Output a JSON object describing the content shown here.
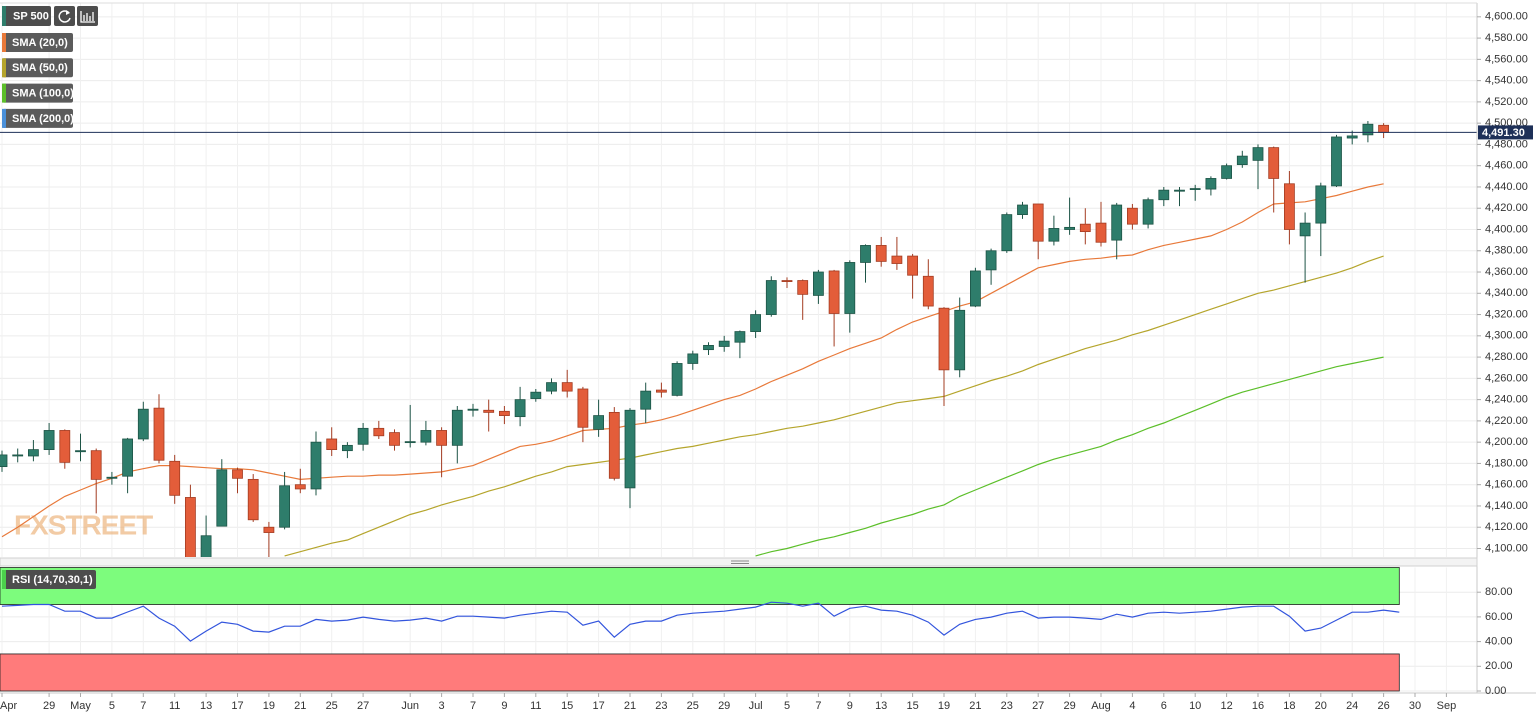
{
  "chart_data": {
    "type": "candlestick",
    "title": "SP 500",
    "watermark": "FXSTREET",
    "categories": [
      "Apr",
      null,
      null,
      "29",
      null,
      "May",
      null,
      "5",
      null,
      "7",
      null,
      "11",
      null,
      "13",
      null,
      "17",
      null,
      "19",
      null,
      "21",
      null,
      "25",
      null,
      "27",
      null,
      null,
      "Jun",
      null,
      "3",
      null,
      "7",
      null,
      "9",
      null,
      "11",
      null,
      "15",
      null,
      "17",
      null,
      "21",
      null,
      "23",
      null,
      "25",
      null,
      "29",
      null,
      "Jul",
      null,
      "5",
      null,
      "7",
      null,
      "9",
      null,
      "13",
      null,
      "15",
      null,
      "19",
      null,
      "21",
      null,
      "23",
      null,
      "27",
      null,
      "29",
      null,
      "Aug",
      null,
      "4",
      null,
      "6",
      null,
      "10",
      null,
      "12",
      null,
      "16",
      null,
      "18",
      null,
      "20",
      null,
      "24",
      null,
      "26",
      null,
      "30",
      null,
      "Sep",
      null
    ],
    "open": [
      4177,
      4187,
      4187,
      4193,
      4211,
      4191,
      4192,
      4166,
      4168,
      4203,
      4232,
      4182,
      4148,
      4074,
      4121,
      4174,
      4165,
      4120,
      4120,
      4160,
      4156,
      4203,
      4192,
      4198,
      4213,
      4209,
      4200,
      4200,
      4211,
      4197,
      4230,
      4230,
      4229,
      4224,
      4241,
      4248,
      4256,
      4250,
      4212,
      4228,
      4157,
      4231,
      4249,
      4244,
      4274,
      4287,
      4290,
      4294,
      4304,
      4320,
      4352,
      4352,
      4338,
      4361,
      4321,
      4369,
      4385,
      4375,
      4375,
      4356,
      4326,
      4268,
      4328,
      4362,
      4380,
      4414,
      4424,
      4389,
      4400,
      4405,
      4406,
      4390,
      4420,
      4405,
      4428,
      4436,
      4438,
      4438,
      4448,
      4461,
      4465,
      4477,
      4443,
      4394,
      4406,
      4441,
      4486,
      4489,
      4498,
      null,
      null,
      null,
      null,
      null
    ],
    "high": [
      4192,
      4194,
      4202,
      4218,
      4212,
      4208,
      4194,
      4172,
      4204,
      4238,
      4245,
      4188,
      4160,
      4131,
      4184,
      4176,
      4170,
      4125,
      4172,
      4175,
      4210,
      4214,
      4200,
      4218,
      4220,
      4212,
      4235,
      4220,
      4214,
      4234,
      4236,
      4240,
      4234,
      4252,
      4250,
      4260,
      4268,
      4252,
      4240,
      4233,
      4232,
      4256,
      4256,
      4276,
      4286,
      4294,
      4300,
      4305,
      4324,
      4356,
      4355,
      4353,
      4362,
      4362,
      4371,
      4386,
      4393,
      4393,
      4377,
      4372,
      4327,
      4336,
      4364,
      4382,
      4416,
      4426,
      4424,
      4413,
      4430,
      4420,
      4426,
      4425,
      4424,
      4430,
      4440,
      4440,
      4442,
      4450,
      4462,
      4474,
      4480,
      4478,
      4455,
      4416,
      4444,
      4489,
      4493,
      4502,
      4500,
      null,
      null,
      null,
      null,
      null
    ],
    "low": [
      4172,
      4181,
      4182,
      4188,
      4175,
      4182,
      4133,
      4160,
      4152,
      4201,
      4180,
      4142,
      4057,
      4069,
      4121,
      4152,
      4125,
      4060,
      4118,
      4152,
      4150,
      4187,
      4185,
      4192,
      4203,
      4192,
      4195,
      4197,
      4167,
      4180,
      4224,
      4210,
      4217,
      4215,
      4238,
      4245,
      4242,
      4200,
      4205,
      4164,
      4138,
      4218,
      4242,
      4243,
      4268,
      4282,
      4285,
      4279,
      4298,
      4318,
      4345,
      4315,
      4330,
      4290,
      4303,
      4350,
      4365,
      4362,
      4335,
      4325,
      4234,
      4261,
      4327,
      4348,
      4378,
      4410,
      4372,
      4385,
      4395,
      4386,
      4384,
      4372,
      4400,
      4401,
      4422,
      4422,
      4427,
      4432,
      4447,
      4458,
      4438,
      4416,
      4386,
      4350,
      4375,
      4440,
      4480,
      4482,
      4486,
      null,
      null,
      null,
      null,
      null
    ],
    "close": [
      4188,
      4188,
      4193,
      4211,
      4181,
      4192,
      4165,
      4167,
      4203,
      4231,
      4183,
      4150,
      4063,
      4112,
      4174,
      4166,
      4127,
      4115,
      4159,
      4156,
      4200,
      4193,
      4197,
      4213,
      4206,
      4197,
      4200.5,
      4211,
      4197,
      4230,
      4231,
      4228,
      4225,
      4240,
      4247,
      4256,
      4248,
      4214,
      4225,
      4166,
      4230,
      4248,
      4247,
      4274,
      4283,
      4291,
      4295,
      4304,
      4320,
      4352,
      4351,
      4339,
      4360,
      4321,
      4369,
      4385,
      4370,
      4368,
      4357,
      4328,
      4268,
      4324,
      4361,
      4380,
      4414,
      4423,
      4389,
      4401,
      4402,
      4398,
      4388,
      4423,
      4405,
      4428,
      4437,
      4437,
      4438.5,
      4448,
      4460,
      4469,
      4477,
      4448,
      4400,
      4406,
      4441,
      4487,
      4488,
      4499,
      4491.3,
      null,
      null,
      null,
      null,
      null
    ],
    "up_color": "#2e7d6b",
    "down_color": "#e35d3a",
    "overlays": [
      {
        "name": "SMA (20,0)",
        "color": "#e8793a",
        "values": [
          4111,
          4120,
          4130,
          4140,
          4149,
          4155,
          4161,
          4166,
          4172,
          4175,
          4178,
          4178,
          4177,
          4176,
          4175,
          4175,
          4174,
          4171,
          4168,
          4165,
          4166,
          4167,
          4168,
          4168,
          4169,
          4169,
          4170,
          4171,
          4172,
          4175,
          4178,
          4184,
          4190,
          4196,
          4198,
          4201,
          4206,
          4211,
          4212,
          4213,
          4216,
          4218,
          4221,
          4225,
          4230,
          4235,
          4240,
          4244,
          4250,
          4257,
          4263,
          4269,
          4276,
          4282,
          4288,
          4293,
          4298,
          4306,
          4313,
          4318,
          4323,
          4328,
          4332,
          4340,
          4348,
          4356,
          4364,
          4367,
          4370,
          4372,
          4373,
          4375,
          4376,
          4381,
          4385,
          4388,
          4391,
          4394,
          4400,
          4407,
          4416,
          4424,
          4425,
          4426,
          4429,
          4432,
          4436,
          4440,
          4443,
          null,
          null,
          null,
          null,
          null
        ]
      },
      {
        "name": "SMA (50,0)",
        "color": "#b5a52c",
        "values": [
          null,
          null,
          null,
          null,
          null,
          null,
          null,
          null,
          null,
          null,
          null,
          null,
          null,
          null,
          null,
          null,
          null,
          null,
          4093,
          4097,
          4101,
          4105,
          4108,
          4114,
          4120,
          4126,
          4132,
          4136,
          4141,
          4145,
          4149,
          4154,
          4158,
          4163,
          4168,
          4172,
          4177,
          4179,
          4181,
          4183,
          4185,
          4188,
          4191,
          4194,
          4196,
          4199,
          4202,
          4205,
          4207,
          4210,
          4213,
          4215,
          4218,
          4221,
          4225,
          4229,
          4233,
          4237,
          4239,
          4241,
          4243,
          4248,
          4253,
          4258,
          4262,
          4267,
          4273,
          4278,
          4283,
          4288,
          4292,
          4296,
          4301,
          4305,
          4310,
          4315,
          4320,
          4325,
          4330,
          4335,
          4340,
          4343,
          4347,
          4351,
          4355,
          4359,
          4364,
          4370,
          4375,
          null,
          null,
          null,
          null,
          null
        ]
      },
      {
        "name": "SMA (100,0)",
        "color": "#5cbf2a",
        "values": [
          null,
          null,
          null,
          null,
          null,
          null,
          null,
          null,
          null,
          null,
          null,
          null,
          null,
          null,
          null,
          null,
          null,
          null,
          null,
          null,
          null,
          null,
          null,
          null,
          null,
          null,
          null,
          null,
          null,
          null,
          null,
          null,
          null,
          null,
          null,
          null,
          null,
          null,
          null,
          null,
          null,
          null,
          null,
          null,
          null,
          null,
          null,
          null,
          4093,
          4097,
          4100,
          4104,
          4108,
          4111,
          4115,
          4119,
          4124,
          4128,
          4132,
          4137,
          4141,
          4149,
          4155,
          4161,
          4167,
          4173,
          4179,
          4184,
          4188,
          4192,
          4196,
          4202,
          4207,
          4213,
          4218,
          4224,
          4230,
          4236,
          4242,
          4247,
          4251,
          4255,
          4259,
          4263,
          4267,
          4271,
          4274,
          4277,
          4280,
          null,
          null,
          null,
          null,
          null
        ]
      },
      {
        "name": "SMA (200,0)",
        "color": "#4a90d9"
      }
    ],
    "ylim": [
      4092,
      4613
    ],
    "yticks": [
      {
        "value": 4100,
        "label": "4,100.00"
      },
      {
        "value": 4120,
        "label": "4,120.00"
      },
      {
        "value": 4140,
        "label": "4,140.00"
      },
      {
        "value": 4160,
        "label": "4,160.00"
      },
      {
        "value": 4180,
        "label": "4,180.00"
      },
      {
        "value": 4200,
        "label": "4,200.00"
      },
      {
        "value": 4220,
        "label": "4,220.00"
      },
      {
        "value": 4240,
        "label": "4,240.00"
      },
      {
        "value": 4260,
        "label": "4,260.00"
      },
      {
        "value": 4280,
        "label": "4,280.00"
      },
      {
        "value": 4300,
        "label": "4,300.00"
      },
      {
        "value": 4320,
        "label": "4,320.00"
      },
      {
        "value": 4340,
        "label": "4,340.00"
      },
      {
        "value": 4360,
        "label": "4,360.00"
      },
      {
        "value": 4380,
        "label": "4,380.00"
      },
      {
        "value": 4400,
        "label": "4,400.00"
      },
      {
        "value": 4420,
        "label": "4,420.00"
      },
      {
        "value": 4440,
        "label": "4,440.00"
      },
      {
        "value": 4460,
        "label": "4,460.00"
      },
      {
        "value": 4480,
        "label": "4,480.00"
      },
      {
        "value": 4500,
        "label": "4,500.00"
      },
      {
        "value": 4520,
        "label": "4,520.00"
      },
      {
        "value": 4540,
        "label": "4,540.00"
      },
      {
        "value": 4560,
        "label": "4,560.00"
      },
      {
        "value": 4580,
        "label": "4,580.00"
      },
      {
        "value": 4600,
        "label": "4,600.00"
      }
    ],
    "grid": true,
    "last_price": {
      "value": 4491.3,
      "label": "4,491.30",
      "color": "#1e3058"
    },
    "rsi": {
      "type": "line",
      "name": "RSI (14,70,30,1)",
      "color": "#3355dd",
      "values": [
        68.7,
        69.3,
        70,
        70,
        64.6,
        64.6,
        59,
        59,
        64,
        68.7,
        59,
        52.5,
        40.4,
        48.5,
        55.8,
        54,
        48.5,
        47.7,
        52.5,
        52.5,
        58,
        56.6,
        57.4,
        59.8,
        58,
        56.6,
        57.4,
        59,
        56.6,
        60.6,
        60.6,
        59.8,
        59,
        61.4,
        63,
        64.6,
        63.8,
        53.3,
        56.6,
        43.6,
        54,
        56.6,
        56.6,
        61.4,
        63,
        63.8,
        64.6,
        66.3,
        67.9,
        71.9,
        71.1,
        68.7,
        71.1,
        60.6,
        67,
        68.7,
        65.5,
        64.6,
        61.4,
        55.8,
        45.3,
        54,
        58,
        59.8,
        63,
        64.6,
        59,
        59.8,
        59.8,
        59,
        58,
        62.2,
        59.8,
        63,
        63.8,
        63,
        63.8,
        64.6,
        66.3,
        67.9,
        68.7,
        68.7,
        60.6,
        48.5,
        50.9,
        57.4,
        63.8,
        63.8,
        65.5,
        63.8,
        null,
        null,
        null,
        null,
        null
      ],
      "ylim": [
        0,
        100
      ],
      "yticks": [
        {
          "value": 0,
          "label": "0.00"
        },
        {
          "value": 20,
          "label": "20.00"
        },
        {
          "value": 40,
          "label": "40.00"
        },
        {
          "value": 60,
          "label": "60.00"
        },
        {
          "value": 80,
          "label": "80.00"
        }
      ],
      "overbought": 70,
      "oversold": 30,
      "overbought_color": "#7dfc7d",
      "oversold_color": "#ff7b7b"
    }
  }
}
